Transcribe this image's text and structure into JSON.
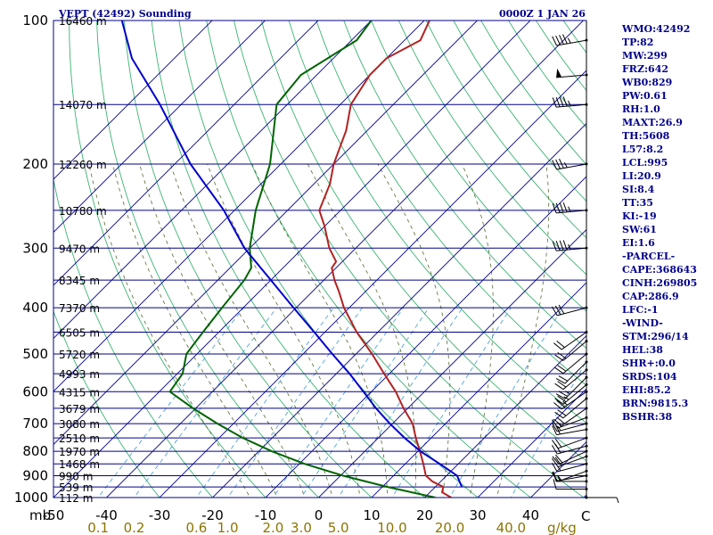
{
  "header": {
    "title": "VEPT (42492) Sounding",
    "time": "0000Z  1 JAN 26"
  },
  "indices": [
    "WMO:42492",
    "TP:82",
    "MW:299",
    "FRZ:642",
    "WB0:829",
    "PW:0.61",
    "RH:1.0",
    "MAXT:26.9",
    "TH:5608",
    "L57:8.2",
    "LCL:995",
    "LI:20.9",
    "SI:8.4",
    "TT:35",
    "KI:-19",
    "SW:61",
    "EI:1.6",
    "-PARCEL-",
    "CAPE:368643",
    "CINH:269805",
    "CAP:286.9",
    "LFC:-1",
    "-WIND-",
    "STM:296/14",
    "HEL:38",
    "SHR+:0.0",
    "SRDS:104",
    "EHI:85.2",
    "BRN:9815.3",
    "BSHR:38"
  ],
  "colors": {
    "isobar": "#00008B",
    "temperature": "#B22222",
    "dewpoint": "#006400",
    "parcel": "#0000CD",
    "dry_adiabat": "#3CB371",
    "moist_adiabat": "#556B2F",
    "mixing_ratio": "#4FA3D9",
    "isotherm": "#00008B",
    "label_text": "#00008B",
    "mixing_label": "#8B7500"
  },
  "chart_data": {
    "type": "line",
    "title": "VEPT (42492) Sounding",
    "subtitle": "0000Z  1 JAN 26",
    "x_unit": "C",
    "y_scale": "log",
    "pressure_range": [
      1000,
      100
    ],
    "temperature_range": [
      -50,
      50
    ],
    "pressure_unit": "mb",
    "pressure_ticks": [
      {
        "label": "100",
        "p": 100
      },
      {
        "label": "200",
        "p": 200
      },
      {
        "label": "300",
        "p": 300
      },
      {
        "label": "400",
        "p": 400
      },
      {
        "label": "500",
        "p": 500
      },
      {
        "label": "600",
        "p": 600
      },
      {
        "label": "700",
        "p": 700
      },
      {
        "label": "800",
        "p": 800
      },
      {
        "label": "900",
        "p": 900
      },
      {
        "label": "1000",
        "p": 1000
      }
    ],
    "temperature_ticks": [
      {
        "label": "-50",
        "t": -50
      },
      {
        "label": "-40",
        "t": -40
      },
      {
        "label": "-30",
        "t": -30
      },
      {
        "label": "-20",
        "t": -20
      },
      {
        "label": "-10",
        "t": -10
      },
      {
        "label": "0",
        "t": 0
      },
      {
        "label": "10",
        "t": 10
      },
      {
        "label": "20",
        "t": 20
      },
      {
        "label": "30",
        "t": 30
      },
      {
        "label": "40",
        "t": 40
      }
    ],
    "height_labels": [
      {
        "label": "16460 m",
        "p": 100
      },
      {
        "label": "14070 m",
        "p": 150
      },
      {
        "label": "12260 m",
        "p": 200
      },
      {
        "label": "10780 m",
        "p": 250
      },
      {
        "label": "9470 m",
        "p": 300
      },
      {
        "label": "8345 m",
        "p": 350
      },
      {
        "label": "7370 m",
        "p": 400
      },
      {
        "label": "6505 m",
        "p": 450
      },
      {
        "label": "5720 m",
        "p": 500
      },
      {
        "label": "4993 m",
        "p": 550
      },
      {
        "label": "4315 m",
        "p": 600
      },
      {
        "label": "3679 m",
        "p": 650
      },
      {
        "label": "3080 m",
        "p": 700
      },
      {
        "label": "2510 m",
        "p": 750
      },
      {
        "label": "1970 m",
        "p": 800
      },
      {
        "label": "1468 m",
        "p": 850
      },
      {
        "label": "990 m",
        "p": 900
      },
      {
        "label": "539 m",
        "p": 950
      },
      {
        "label": "112 m",
        "p": 1000
      }
    ],
    "mixing_ratio_unit": "g/kg",
    "mixing_ratio_labels": [
      "0.1",
      "0.2",
      "0.6",
      "1.0",
      "2.0",
      "3.0",
      "5.0",
      "10.0",
      "20.0",
      "40.0"
    ],
    "mixing_ratio_lines": [
      0.1,
      0.2,
      0.6,
      1.0,
      2.0,
      3.0,
      5.0,
      10.0,
      20.0,
      40.0
    ],
    "isotherms": [
      -110,
      -100,
      -90,
      -80,
      -70,
      -60,
      -50,
      -40,
      -30,
      -20,
      -10,
      0,
      10,
      20,
      30,
      40,
      50
    ],
    "dry_adiabats_theta_c": [
      -30,
      -20,
      -10,
      0,
      10,
      20,
      30,
      40,
      50,
      60,
      70,
      80,
      90,
      100,
      110,
      120,
      130,
      140,
      150,
      160,
      170,
      180
    ],
    "moist_adiabats_c": [
      -10,
      -5,
      0,
      5,
      10,
      15,
      20,
      25,
      30,
      35
    ],
    "series": [
      {
        "key": "temperature",
        "points": [
          [
            1000,
            25
          ],
          [
            975,
            22.3
          ],
          [
            950,
            21.5
          ],
          [
            925,
            18.4
          ],
          [
            900,
            16.1
          ],
          [
            850,
            13.4
          ],
          [
            800,
            10.4
          ],
          [
            750,
            7.1
          ],
          [
            700,
            3.8
          ],
          [
            650,
            -0.8
          ],
          [
            600,
            -5.4
          ],
          [
            550,
            -11
          ],
          [
            500,
            -17
          ],
          [
            450,
            -24
          ],
          [
            400,
            -31
          ],
          [
            370,
            -35
          ],
          [
            350,
            -38
          ],
          [
            330,
            -40.8
          ],
          [
            320,
            -41.2
          ],
          [
            300,
            -45
          ],
          [
            270,
            -50
          ],
          [
            250,
            -54
          ],
          [
            220,
            -57
          ],
          [
            200,
            -60
          ],
          [
            170,
            -64
          ],
          [
            150,
            -68
          ],
          [
            130,
            -70
          ],
          [
            120,
            -70
          ],
          [
            110,
            -67
          ],
          [
            100,
            -69
          ]
        ]
      },
      {
        "key": "dewpoint",
        "points": [
          [
            1000,
            22
          ],
          [
            950,
            11
          ],
          [
            900,
            0.5
          ],
          [
            850,
            -9
          ],
          [
            800,
            -17.5
          ],
          [
            750,
            -25.5
          ],
          [
            700,
            -33
          ],
          [
            650,
            -40.5
          ],
          [
            600,
            -48
          ],
          [
            550,
            -49
          ],
          [
            500,
            -52
          ],
          [
            450,
            -53
          ],
          [
            400,
            -54
          ],
          [
            350,
            -55
          ],
          [
            330,
            -56
          ],
          [
            300,
            -60
          ],
          [
            250,
            -66
          ],
          [
            200,
            -72
          ],
          [
            150,
            -82
          ],
          [
            130,
            -83
          ],
          [
            110,
            -79
          ],
          [
            100,
            -80
          ]
        ]
      },
      {
        "key": "parcel",
        "points": [
          [
            950,
            25
          ],
          [
            900,
            22
          ],
          [
            850,
            16.5
          ],
          [
            800,
            10.5
          ],
          [
            750,
            5
          ],
          [
            700,
            -0.5
          ],
          [
            650,
            -6
          ],
          [
            600,
            -11.5
          ],
          [
            550,
            -17.5
          ],
          [
            500,
            -24.5
          ],
          [
            450,
            -32
          ],
          [
            400,
            -40.5
          ],
          [
            350,
            -50
          ],
          [
            300,
            -61
          ],
          [
            250,
            -72
          ],
          [
            200,
            -87
          ],
          [
            150,
            -104
          ],
          [
            120,
            -118
          ],
          [
            100,
            -127
          ]
        ]
      }
    ],
    "winds": [
      {
        "p": 1000,
        "dir": 90,
        "spd": 5
      },
      {
        "p": 960,
        "dir": 270,
        "spd": 10
      },
      {
        "p": 925,
        "dir": 270,
        "spd": 10
      },
      {
        "p": 900,
        "dir": 260,
        "spd": 15
      },
      {
        "p": 880,
        "dir": 250,
        "spd": 15
      },
      {
        "p": 850,
        "dir": 255,
        "spd": 15
      },
      {
        "p": 820,
        "dir": 250,
        "spd": 20
      },
      {
        "p": 800,
        "dir": 245,
        "spd": 20
      },
      {
        "p": 780,
        "dir": 255,
        "spd": 20
      },
      {
        "p": 750,
        "dir": 250,
        "spd": 20
      },
      {
        "p": 720,
        "dir": 260,
        "spd": 20
      },
      {
        "p": 700,
        "dir": 255,
        "spd": 15
      },
      {
        "p": 680,
        "dir": 250,
        "spd": 15
      },
      {
        "p": 650,
        "dir": 235,
        "spd": 20
      },
      {
        "p": 620,
        "dir": 230,
        "spd": 20
      },
      {
        "p": 600,
        "dir": 235,
        "spd": 25
      },
      {
        "p": 580,
        "dir": 230,
        "spd": 25
      },
      {
        "p": 560,
        "dir": 225,
        "spd": 25
      },
      {
        "p": 540,
        "dir": 230,
        "spd": 20
      },
      {
        "p": 520,
        "dir": 225,
        "spd": 20
      },
      {
        "p": 500,
        "dir": 230,
        "spd": 20
      },
      {
        "p": 470,
        "dir": 230,
        "spd": 20
      },
      {
        "p": 450,
        "dir": 235,
        "spd": 20
      },
      {
        "p": 400,
        "dir": 255,
        "spd": 30
      },
      {
        "p": 300,
        "dir": 265,
        "spd": 45
      },
      {
        "p": 250,
        "dir": 265,
        "spd": 45
      },
      {
        "p": 200,
        "dir": 260,
        "spd": 35
      },
      {
        "p": 150,
        "dir": 265,
        "spd": 45
      },
      {
        "p": 130,
        "dir": 265,
        "spd": 50
      },
      {
        "p": 110,
        "dir": 260,
        "spd": 45
      }
    ]
  }
}
